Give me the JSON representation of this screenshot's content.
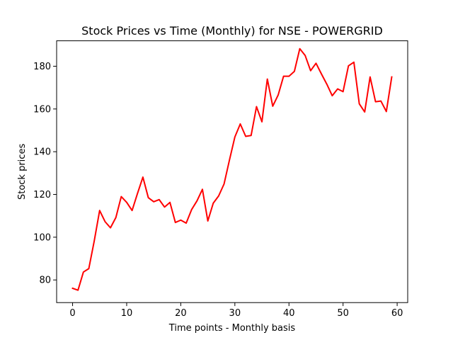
{
  "chart_data": {
    "type": "line",
    "title": "Stock Prices vs Time (Monthly) for NSE - POWERGRID",
    "xlabel": "Time points - Monthly basis",
    "ylabel": "Stock prices",
    "xlim": [
      -2.95,
      61.95
    ],
    "ylim": [
      69.4,
      191.9
    ],
    "xticks": [
      0,
      10,
      20,
      30,
      40,
      50,
      60
    ],
    "yticks": [
      80,
      100,
      120,
      140,
      160,
      180
    ],
    "grid": false,
    "legend": "none",
    "series": [
      {
        "color": "#ff0000",
        "x": [
          0,
          1,
          2,
          3,
          4,
          5,
          6,
          7,
          8,
          9,
          10,
          11,
          12,
          13,
          14,
          15,
          16,
          17,
          18,
          19,
          20,
          21,
          22,
          23,
          24,
          25,
          26,
          27,
          28,
          29,
          30,
          31,
          32,
          33,
          34,
          35,
          36,
          37,
          38,
          39,
          40,
          41,
          42,
          43,
          44,
          45,
          46,
          47,
          48,
          49,
          50,
          51,
          52,
          53,
          54,
          55,
          56,
          57,
          58,
          59
        ],
        "y": [
          76.1,
          75.2,
          83.7,
          85.3,
          98.2,
          112.5,
          107.3,
          104.4,
          109.2,
          119.0,
          116.3,
          112.5,
          120.5,
          128.1,
          118.5,
          116.6,
          117.6,
          114.1,
          116.3,
          106.9,
          108.0,
          106.6,
          112.9,
          117.0,
          122.4,
          107.6,
          115.9,
          119.3,
          124.9,
          136.1,
          146.9,
          153.0,
          147.2,
          147.6,
          161.1,
          154.0,
          174.0,
          161.3,
          166.5,
          175.3,
          175.3,
          177.6,
          188.2,
          185.0,
          177.9,
          181.4,
          176.4,
          171.6,
          166.2,
          169.4,
          168.1,
          180.2,
          181.9,
          162.4,
          158.6,
          175.0,
          163.4,
          163.7,
          158.8,
          175.0
        ]
      }
    ]
  }
}
